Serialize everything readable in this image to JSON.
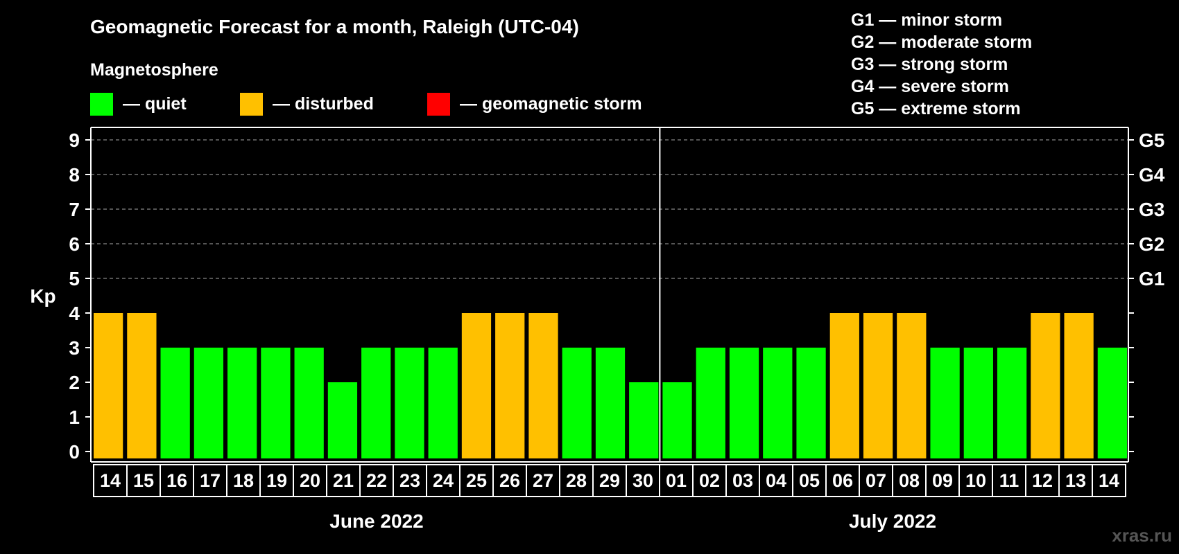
{
  "chart_data": {
    "type": "bar",
    "title": "Geomagnetic Forecast for a month, Raleigh (UTC-04)",
    "subtitle": "Magnetosphere",
    "legend": [
      {
        "label": "— quiet",
        "color": "#00ff00"
      },
      {
        "label": "— disturbed",
        "color": "#ffc000"
      },
      {
        "label": "— geomagnetic storm",
        "color": "#ff0000"
      }
    ],
    "storm_scale": [
      "G1 — minor storm",
      "G2 — moderate storm",
      "G3 — strong storm",
      "G4 — severe storm",
      "G5 — extreme storm"
    ],
    "ylabel": "Kp",
    "ylim": [
      0,
      9
    ],
    "yticks": [
      "0",
      "1",
      "2",
      "3",
      "4",
      "5",
      "6",
      "7",
      "8",
      "9"
    ],
    "right_ticks": [
      {
        "value": 5,
        "label": "G1"
      },
      {
        "value": 6,
        "label": "G2"
      },
      {
        "value": 7,
        "label": "G3"
      },
      {
        "value": 8,
        "label": "G4"
      },
      {
        "value": 9,
        "label": "G5"
      }
    ],
    "categories": [
      "14",
      "15",
      "16",
      "17",
      "18",
      "19",
      "20",
      "21",
      "22",
      "23",
      "24",
      "25",
      "26",
      "27",
      "28",
      "29",
      "30",
      "01",
      "02",
      "03",
      "04",
      "05",
      "06",
      "07",
      "08",
      "09",
      "10",
      "11",
      "12",
      "13",
      "14"
    ],
    "values": [
      4,
      4,
      3,
      3,
      3,
      3,
      3,
      2,
      3,
      3,
      3,
      4,
      4,
      4,
      3,
      3,
      2,
      2,
      3,
      3,
      3,
      3,
      4,
      4,
      4,
      3,
      3,
      3,
      4,
      4,
      3
    ],
    "months": [
      {
        "label": "June 2022",
        "start": 0,
        "end": 16
      },
      {
        "label": "July 2022",
        "start": 17,
        "end": 30
      }
    ],
    "grid": true
  },
  "watermark": "xras.ru"
}
